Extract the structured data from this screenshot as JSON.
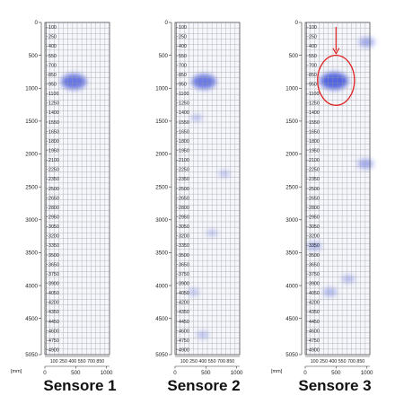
{
  "chart_data": [
    {
      "type": "heatmap",
      "title": "Sensore 1",
      "unit_label": "[mm]",
      "x_major_ticks": [
        0,
        500,
        1000
      ],
      "x_minor_labels": [
        "100",
        "250",
        "400",
        "550",
        "700",
        "850"
      ],
      "y_major_ticks": [
        0,
        500,
        1000,
        1500,
        2000,
        2500,
        3000,
        3500,
        4000,
        4500,
        5050
      ],
      "y_minor_labels": [
        "100",
        "250",
        "400",
        "550",
        "700",
        "850",
        "950",
        "1100",
        "1250",
        "1400",
        "1550",
        "1650",
        "1800",
        "1950",
        "2100",
        "2250",
        "2350",
        "2500",
        "2650",
        "2800",
        "2950",
        "3050",
        "3200",
        "3350",
        "3500",
        "3650",
        "3750",
        "3900",
        "4050",
        "4200",
        "4350",
        "4450",
        "4600",
        "4750",
        "4900"
      ],
      "xlim": [
        0,
        1050
      ],
      "ylim": [
        0,
        5050
      ],
      "grid": true,
      "hotspots": [
        {
          "x": 470,
          "y": 900,
          "strength": 0.85
        }
      ],
      "annotation": null
    },
    {
      "type": "heatmap",
      "title": "Sensore 2",
      "unit_label": "",
      "x_major_ticks": [
        0,
        500,
        1000
      ],
      "x_minor_labels": [
        "100",
        "250",
        "400",
        "550",
        "700",
        "850"
      ],
      "y_major_ticks": [
        0,
        500,
        1000,
        1500,
        2000,
        2500,
        3000,
        3500,
        4000,
        4500,
        5050
      ],
      "y_minor_labels": [
        "100",
        "250",
        "400",
        "550",
        "700",
        "850",
        "950",
        "1100",
        "1250",
        "1400",
        "1550",
        "1650",
        "1800",
        "1950",
        "2100",
        "2250",
        "2350",
        "2500",
        "2650",
        "2800",
        "2950",
        "3050",
        "3200",
        "3350",
        "3500",
        "3650",
        "3750",
        "3900",
        "4050",
        "4200",
        "4350",
        "4450",
        "4600",
        "4750",
        "4900"
      ],
      "xlim": [
        0,
        1050
      ],
      "ylim": [
        0,
        5050
      ],
      "grid": true,
      "hotspots": [
        {
          "x": 470,
          "y": 900,
          "strength": 0.8
        },
        {
          "x": 350,
          "y": 1450,
          "strength": 0.12
        },
        {
          "x": 800,
          "y": 2300,
          "strength": 0.12
        },
        {
          "x": 600,
          "y": 3200,
          "strength": 0.1
        },
        {
          "x": 300,
          "y": 4100,
          "strength": 0.12
        },
        {
          "x": 450,
          "y": 4750,
          "strength": 0.15
        }
      ],
      "annotation": null
    },
    {
      "type": "heatmap",
      "title": "Sensore 3",
      "unit_label": "[mm]",
      "x_major_ticks": [
        0,
        500,
        1000
      ],
      "x_minor_labels": [
        "100",
        "250",
        "400",
        "550",
        "700",
        "850"
      ],
      "y_major_ticks": [
        0,
        500,
        1000,
        1500,
        2000,
        2500,
        3000,
        3500,
        4000,
        4500,
        5050
      ],
      "y_minor_labels": [
        "100",
        "250",
        "400",
        "550",
        "700",
        "850",
        "950",
        "1100",
        "1250",
        "1400",
        "1550",
        "1650",
        "1800",
        "1950",
        "2100",
        "2250",
        "2350",
        "2500",
        "2650",
        "2800",
        "2950",
        "3050",
        "3200",
        "3350",
        "3500",
        "3650",
        "3750",
        "3900",
        "4050",
        "4200",
        "4350",
        "4450",
        "4600",
        "4750",
        "4900"
      ],
      "xlim": [
        0,
        1050
      ],
      "ylim": [
        0,
        5050
      ],
      "grid": true,
      "hotspots": [
        {
          "x": 470,
          "y": 890,
          "strength": 1.0
        },
        {
          "x": 1000,
          "y": 300,
          "strength": 0.35
        },
        {
          "x": 980,
          "y": 2150,
          "strength": 0.35
        },
        {
          "x": 150,
          "y": 3400,
          "strength": 0.25
        },
        {
          "x": 400,
          "y": 4100,
          "strength": 0.25
        },
        {
          "x": 700,
          "y": 3900,
          "strength": 0.2
        }
      ],
      "annotation": {
        "shape": "circle",
        "x": 500,
        "y": 880,
        "rx": 300,
        "ry": 380,
        "color": "#e02020",
        "arrow": true
      }
    }
  ],
  "colors": {
    "grid": "#9a9a9a",
    "frame": "#555555",
    "hot": "#4a5ce0",
    "annotation": "#e02020"
  }
}
